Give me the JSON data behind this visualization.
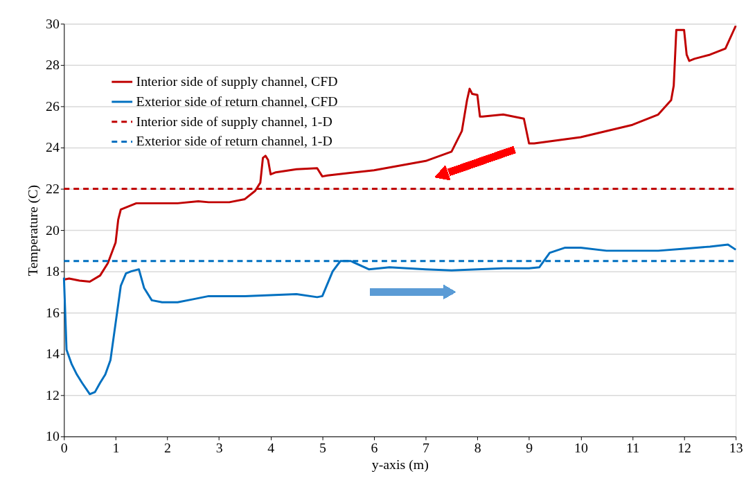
{
  "chart_data": {
    "type": "line",
    "xlabel": "y-axis (m)",
    "ylabel": "Temperature (C)",
    "xlim": [
      0,
      13
    ],
    "xticks": [
      0,
      1,
      2,
      3,
      4,
      5,
      6,
      7,
      8,
      9,
      10,
      11,
      12,
      13
    ],
    "ylim": [
      10,
      30
    ],
    "yticks": [
      10,
      12,
      14,
      16,
      18,
      20,
      22,
      24,
      26,
      28,
      30
    ],
    "grid": "y",
    "legend": "top left",
    "marker": "none",
    "series": [
      {
        "name": "Interior side of supply channel, CFD",
        "color": "#c00000",
        "line_style": "solid",
        "x": [
          0,
          0.1,
          0.3,
          0.5,
          0.7,
          0.85,
          1.0,
          1.05,
          1.1,
          1.2,
          1.4,
          1.8,
          2.2,
          2.6,
          2.8,
          3.2,
          3.5,
          3.7,
          3.8,
          3.85,
          3.9,
          3.95,
          4.0,
          4.1,
          4.5,
          4.9,
          5.0,
          5.1,
          6,
          7,
          7.5,
          7.7,
          7.8,
          7.85,
          7.9,
          8.0,
          8.05,
          8.1,
          8.5,
          8.9,
          9.0,
          9.1,
          10,
          11,
          11.5,
          11.75,
          11.8,
          11.85,
          11.95,
          12.0,
          12.05,
          12.1,
          12.2,
          12.5,
          12.8,
          13
        ],
        "values": [
          17.6,
          17.65,
          17.55,
          17.5,
          17.8,
          18.4,
          19.4,
          20.5,
          21.0,
          21.1,
          21.3,
          21.3,
          21.3,
          21.4,
          21.35,
          21.35,
          21.5,
          21.9,
          22.3,
          23.5,
          23.6,
          23.4,
          22.7,
          22.8,
          22.95,
          23.0,
          22.6,
          22.65,
          22.9,
          23.35,
          23.8,
          24.8,
          26.3,
          26.85,
          26.6,
          26.55,
          25.5,
          25.5,
          25.6,
          25.4,
          24.2,
          24.2,
          24.5,
          25.1,
          25.6,
          26.3,
          27.0,
          29.7,
          29.7,
          29.7,
          28.5,
          28.2,
          28.3,
          28.5,
          28.8,
          29.9
        ]
      },
      {
        "name": "Exterior side of return channel, CFD",
        "color": "#0070c0",
        "line_style": "solid",
        "x": [
          0,
          0.05,
          0.15,
          0.25,
          0.35,
          0.5,
          0.6,
          0.7,
          0.8,
          0.9,
          1.0,
          1.1,
          1.2,
          1.3,
          1.45,
          1.55,
          1.7,
          1.9,
          2.2,
          2.5,
          2.8,
          3.5,
          4.0,
          4.5,
          4.9,
          5.0,
          5.2,
          5.35,
          5.55,
          5.9,
          6.3,
          7.0,
          7.5,
          8.0,
          8.5,
          9.0,
          9.2,
          9.4,
          9.7,
          10,
          10.5,
          11,
          11.5,
          12,
          12.5,
          12.85,
          13
        ],
        "values": [
          17.7,
          14.2,
          13.5,
          13.0,
          12.6,
          12.05,
          12.15,
          12.6,
          13.0,
          13.7,
          15.5,
          17.3,
          17.9,
          18.0,
          18.1,
          17.2,
          16.6,
          16.5,
          16.5,
          16.65,
          16.8,
          16.8,
          16.85,
          16.9,
          16.75,
          16.8,
          18.0,
          18.5,
          18.5,
          18.1,
          18.2,
          18.1,
          18.05,
          18.1,
          18.15,
          18.15,
          18.2,
          18.9,
          19.15,
          19.15,
          19.0,
          19.0,
          19.0,
          19.1,
          19.2,
          19.3,
          19.05
        ]
      },
      {
        "name": "Interior side of supply channel, 1-D",
        "color": "#c00000",
        "line_style": "dashed",
        "x": [
          0,
          13
        ],
        "values": [
          22,
          22
        ]
      },
      {
        "name": "Exterior side of return channel, 1-D",
        "color": "#0070c0",
        "line_style": "dashed",
        "x": [
          0,
          13
        ],
        "values": [
          18.5,
          18.5
        ]
      }
    ]
  }
}
